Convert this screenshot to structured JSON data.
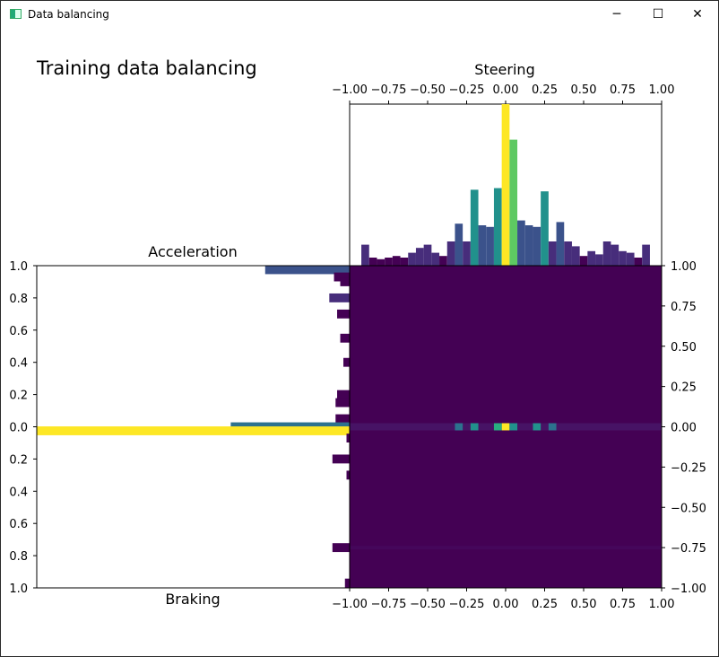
{
  "window": {
    "title": "Data balancing",
    "controls": {
      "minimize": "─",
      "maximize": "☐",
      "close": "✕"
    }
  },
  "colors": {
    "viridis": [
      "#440154",
      "#472d7b",
      "#3b528b",
      "#2c728e",
      "#21918c",
      "#28ae80",
      "#5ec962",
      "#addc30",
      "#fde725"
    ]
  },
  "chart_data": [
    {
      "type": "heatmap",
      "title": "Training data balancing",
      "xlabel": "",
      "ylabel": "",
      "xlim": [
        -1,
        1
      ],
      "ylim": [
        -1,
        1
      ],
      "xticks": [
        "−1.00",
        "−0.75",
        "−0.50",
        "−0.25",
        "0.00",
        "0.25",
        "0.50",
        "0.75",
        "1.00"
      ],
      "yticks": [
        "−1.00",
        "−0.75",
        "−0.50",
        "−0.25",
        "0.00",
        "0.25",
        "0.50",
        "0.75",
        "1.00"
      ],
      "colormap": "viridis",
      "hot_cells": [
        {
          "x": 0.0,
          "y": 0.0,
          "level": 1.0
        },
        {
          "x": -0.05,
          "y": 0.0,
          "level": 0.6
        },
        {
          "x": 0.05,
          "y": 0.0,
          "level": 0.55
        },
        {
          "x": -0.2,
          "y": 0.0,
          "level": 0.45
        },
        {
          "x": 0.2,
          "y": 0.0,
          "level": 0.45
        },
        {
          "x": -0.3,
          "y": 0.0,
          "level": 0.35
        },
        {
          "x": 0.3,
          "y": 0.0,
          "level": 0.35
        }
      ]
    },
    {
      "type": "bar",
      "title": "Steering",
      "orientation": "vertical",
      "xlim": [
        -1,
        1
      ],
      "xticks": [
        "−1.00",
        "−0.75",
        "−0.50",
        "−0.25",
        "0.00",
        "0.25",
        "0.50",
        "0.75",
        "1.00"
      ],
      "bins": [
        {
          "x": -0.9,
          "v": 0.13
        },
        {
          "x": -0.85,
          "v": 0.05
        },
        {
          "x": -0.8,
          "v": 0.04
        },
        {
          "x": -0.75,
          "v": 0.05
        },
        {
          "x": -0.7,
          "v": 0.06
        },
        {
          "x": -0.65,
          "v": 0.05
        },
        {
          "x": -0.6,
          "v": 0.08
        },
        {
          "x": -0.55,
          "v": 0.11
        },
        {
          "x": -0.5,
          "v": 0.13
        },
        {
          "x": -0.45,
          "v": 0.08
        },
        {
          "x": -0.4,
          "v": 0.06
        },
        {
          "x": -0.35,
          "v": 0.15
        },
        {
          "x": -0.3,
          "v": 0.26
        },
        {
          "x": -0.25,
          "v": 0.15
        },
        {
          "x": -0.2,
          "v": 0.47
        },
        {
          "x": -0.15,
          "v": 0.25
        },
        {
          "x": -0.1,
          "v": 0.24
        },
        {
          "x": -0.05,
          "v": 0.48
        },
        {
          "x": 0.0,
          "v": 1.0
        },
        {
          "x": 0.05,
          "v": 0.78
        },
        {
          "x": 0.1,
          "v": 0.28
        },
        {
          "x": 0.15,
          "v": 0.25
        },
        {
          "x": 0.2,
          "v": 0.24
        },
        {
          "x": 0.25,
          "v": 0.46
        },
        {
          "x": 0.3,
          "v": 0.15
        },
        {
          "x": 0.35,
          "v": 0.27
        },
        {
          "x": 0.4,
          "v": 0.15
        },
        {
          "x": 0.45,
          "v": 0.12
        },
        {
          "x": 0.5,
          "v": 0.06
        },
        {
          "x": 0.55,
          "v": 0.09
        },
        {
          "x": 0.6,
          "v": 0.07
        },
        {
          "x": 0.65,
          "v": 0.15
        },
        {
          "x": 0.7,
          "v": 0.13
        },
        {
          "x": 0.75,
          "v": 0.09
        },
        {
          "x": 0.8,
          "v": 0.08
        },
        {
          "x": 0.85,
          "v": 0.05
        },
        {
          "x": 0.9,
          "v": 0.13
        }
      ]
    },
    {
      "type": "bar",
      "title": "Acceleration",
      "xlabel": "Braking",
      "orientation": "horizontal",
      "ylim": [
        -1,
        1
      ],
      "yticks": [
        "1.0",
        "0.8",
        "0.6",
        "0.4",
        "0.2",
        "0.0",
        "0.2",
        "0.4",
        "0.6",
        "0.8",
        "1.0"
      ],
      "bins": [
        {
          "y": 0.975,
          "v": 0.27
        },
        {
          "y": 0.93,
          "v": 0.05
        },
        {
          "y": 0.9,
          "v": 0.03
        },
        {
          "y": 0.8,
          "v": 0.065
        },
        {
          "y": 0.7,
          "v": 0.04
        },
        {
          "y": 0.55,
          "v": 0.03
        },
        {
          "y": 0.4,
          "v": 0.02
        },
        {
          "y": 0.2,
          "v": 0.04
        },
        {
          "y": 0.15,
          "v": 0.045
        },
        {
          "y": 0.05,
          "v": 0.045
        },
        {
          "y": 0.0,
          "v": 0.38
        },
        {
          "y": -0.025,
          "v": 1.0
        },
        {
          "y": -0.07,
          "v": 0.01
        },
        {
          "y": -0.2,
          "v": 0.055
        },
        {
          "y": -0.3,
          "v": 0.01
        },
        {
          "y": -0.75,
          "v": 0.055
        },
        {
          "y": -0.97,
          "v": 0.015
        }
      ]
    }
  ]
}
